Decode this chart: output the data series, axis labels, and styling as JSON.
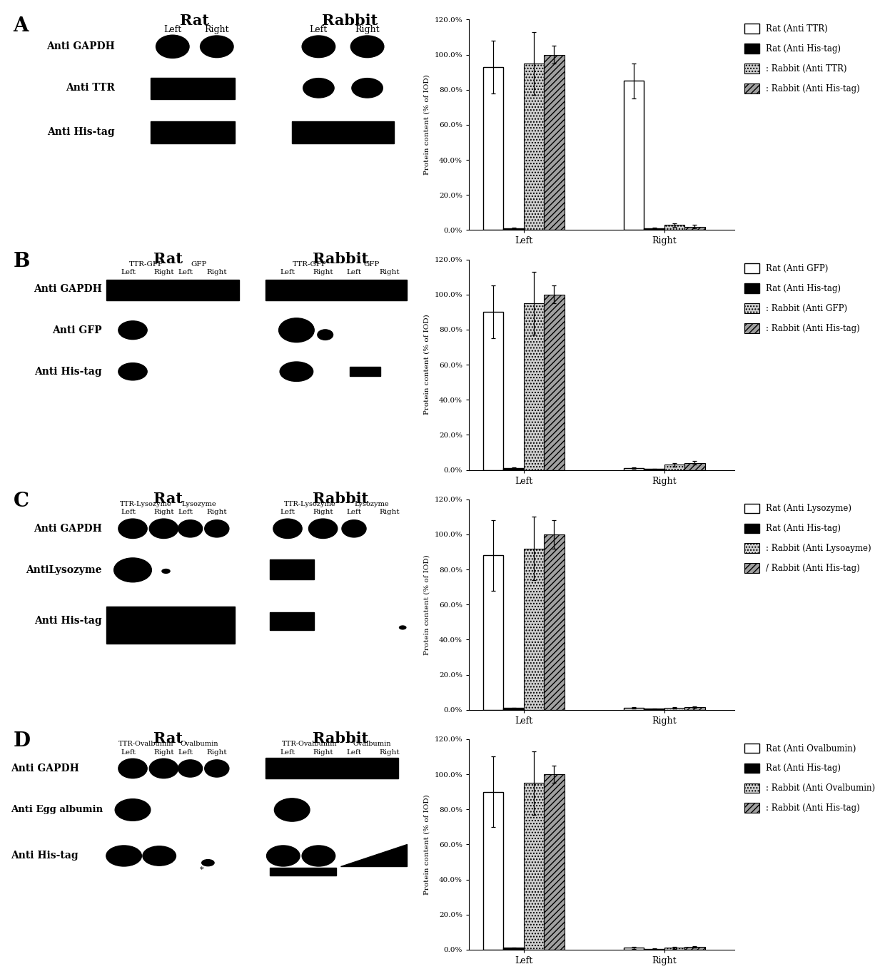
{
  "panels": [
    "A",
    "B",
    "C",
    "D"
  ],
  "bar_data": {
    "A": {
      "groups": [
        "Left",
        "Right"
      ],
      "s0": {
        "values": [
          93,
          85
        ],
        "errors": [
          15,
          10
        ]
      },
      "s1": {
        "values": [
          1,
          1
        ],
        "errors": [
          0.5,
          0.5
        ]
      },
      "s2": {
        "values": [
          95,
          3
        ],
        "errors": [
          18,
          1
        ]
      },
      "s3": {
        "values": [
          100,
          2
        ],
        "errors": [
          5,
          1
        ]
      },
      "legend": [
        "Rat (Anti TTR)",
        "Rat (Anti His-tag)",
        ": Rabbit (Anti TTR)",
        ": Rabbit (Anti His-tag)"
      ]
    },
    "B": {
      "groups": [
        "Left",
        "Right"
      ],
      "s0": {
        "values": [
          90,
          1
        ],
        "errors": [
          15,
          0.5
        ]
      },
      "s1": {
        "values": [
          1,
          0.5
        ],
        "errors": [
          0.3,
          0.2
        ]
      },
      "s2": {
        "values": [
          95,
          3
        ],
        "errors": [
          18,
          1
        ]
      },
      "s3": {
        "values": [
          100,
          4
        ],
        "errors": [
          5,
          1
        ]
      },
      "legend": [
        "Rat (Anti GFP)",
        "Rat (Anti His-tag)",
        ": Rabbit (Anti GFP)",
        ": Rabbit (Anti His-tag)"
      ]
    },
    "C": {
      "groups": [
        "Left",
        "Right"
      ],
      "s0": {
        "values": [
          88,
          1
        ],
        "errors": [
          20,
          0.5
        ]
      },
      "s1": {
        "values": [
          1,
          0.5
        ],
        "errors": [
          0.3,
          0.2
        ]
      },
      "s2": {
        "values": [
          92,
          1
        ],
        "errors": [
          18,
          0.5
        ]
      },
      "s3": {
        "values": [
          100,
          1.5
        ],
        "errors": [
          8,
          0.5
        ]
      },
      "legend": [
        "Rat (Anti Lysozyme)",
        "Rat (Anti His-tag)",
        ": Rabbit (Anti Lysoayme)",
        "/ Rabbit (Anti His-tag)"
      ]
    },
    "D": {
      "groups": [
        "Left",
        "Right"
      ],
      "s0": {
        "values": [
          90,
          1
        ],
        "errors": [
          20,
          0.5
        ]
      },
      "s1": {
        "values": [
          1,
          0.5
        ],
        "errors": [
          0.3,
          0.2
        ]
      },
      "s2": {
        "values": [
          95,
          1
        ],
        "errors": [
          18,
          0.5
        ]
      },
      "s3": {
        "values": [
          100,
          1.5
        ],
        "errors": [
          5,
          0.5
        ]
      },
      "legend": [
        "Rat (Anti Ovalbumin)",
        "Rat (Anti His-tag)",
        ": Rabbit (Anti Ovalbumin)",
        ": Rabbit (Anti His-tag)"
      ]
    }
  },
  "ylim": [
    0,
    120
  ],
  "ytick_labels": [
    "0.0%",
    "20.0%",
    "40.0%",
    "60.0%",
    "80.0%",
    "100.0%",
    "120.0%"
  ],
  "ylabel": "Protein content (% of IOD)"
}
